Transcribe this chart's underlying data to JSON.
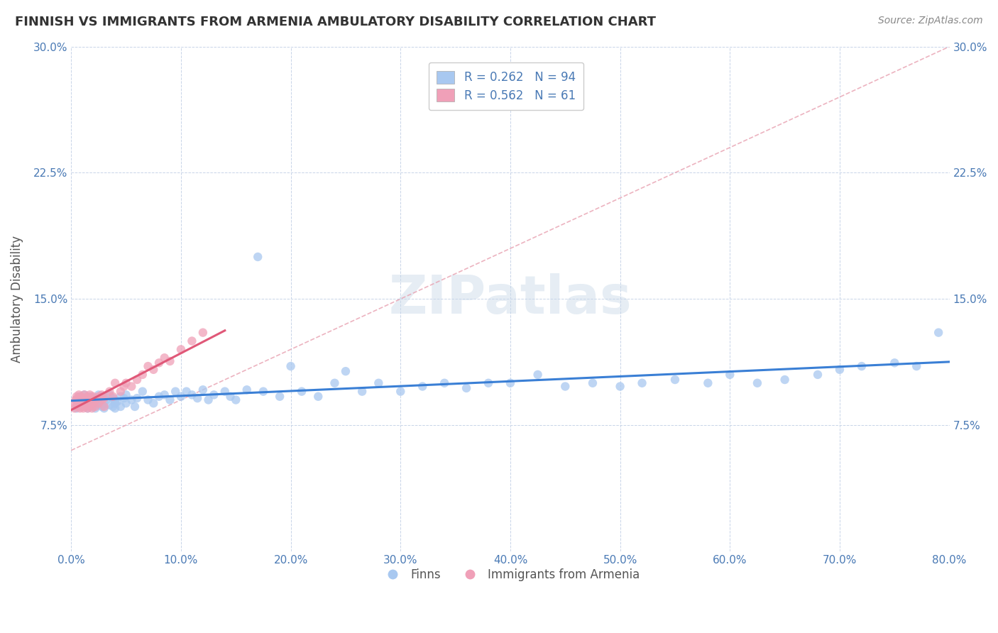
{
  "title": "FINNISH VS IMMIGRANTS FROM ARMENIA AMBULATORY DISABILITY CORRELATION CHART",
  "source": "Source: ZipAtlas.com",
  "ylabel": "Ambulatory Disability",
  "xmin": 0.0,
  "xmax": 0.8,
  "ymin": 0.0,
  "ymax": 0.3,
  "legend_entry1": "R = 0.262   N = 94",
  "legend_entry2": "R = 0.562   N = 61",
  "legend_label1": "Finns",
  "legend_label2": "Immigrants from Armenia",
  "dot_color_blue": "#a8c8f0",
  "dot_color_pink": "#f0a0b8",
  "line_color_blue": "#3a7fd5",
  "line_color_pink": "#e05878",
  "diag_color": "#e8a0b0",
  "background_color": "#ffffff",
  "grid_color": "#c8d4e8",
  "watermark": "ZIPatlas",
  "finns_x": [
    0.005,
    0.005,
    0.008,
    0.008,
    0.01,
    0.01,
    0.01,
    0.012,
    0.012,
    0.015,
    0.015,
    0.015,
    0.018,
    0.018,
    0.02,
    0.02,
    0.02,
    0.022,
    0.022,
    0.025,
    0.025,
    0.025,
    0.028,
    0.028,
    0.03,
    0.03,
    0.03,
    0.032,
    0.035,
    0.035,
    0.038,
    0.038,
    0.04,
    0.04,
    0.04,
    0.042,
    0.045,
    0.045,
    0.048,
    0.05,
    0.05,
    0.055,
    0.058,
    0.06,
    0.065,
    0.07,
    0.075,
    0.08,
    0.085,
    0.09,
    0.095,
    0.1,
    0.105,
    0.11,
    0.115,
    0.12,
    0.125,
    0.13,
    0.14,
    0.145,
    0.15,
    0.16,
    0.17,
    0.175,
    0.19,
    0.2,
    0.21,
    0.225,
    0.24,
    0.25,
    0.265,
    0.28,
    0.3,
    0.32,
    0.34,
    0.36,
    0.38,
    0.4,
    0.425,
    0.45,
    0.475,
    0.5,
    0.52,
    0.55,
    0.58,
    0.6,
    0.625,
    0.65,
    0.68,
    0.7,
    0.72,
    0.75,
    0.77,
    0.79
  ],
  "finns_y": [
    0.09,
    0.085,
    0.088,
    0.092,
    0.086,
    0.091,
    0.088,
    0.087,
    0.093,
    0.085,
    0.09,
    0.087,
    0.089,
    0.092,
    0.086,
    0.091,
    0.088,
    0.09,
    0.085,
    0.087,
    0.093,
    0.089,
    0.086,
    0.091,
    0.088,
    0.092,
    0.085,
    0.09,
    0.087,
    0.093,
    0.086,
    0.091,
    0.088,
    0.09,
    0.085,
    0.089,
    0.092,
    0.086,
    0.091,
    0.088,
    0.093,
    0.09,
    0.086,
    0.091,
    0.095,
    0.09,
    0.088,
    0.092,
    0.093,
    0.09,
    0.095,
    0.092,
    0.095,
    0.093,
    0.091,
    0.096,
    0.09,
    0.093,
    0.095,
    0.092,
    0.09,
    0.096,
    0.175,
    0.095,
    0.092,
    0.11,
    0.095,
    0.092,
    0.1,
    0.107,
    0.095,
    0.1,
    0.095,
    0.098,
    0.1,
    0.097,
    0.1,
    0.1,
    0.105,
    0.098,
    0.1,
    0.098,
    0.1,
    0.102,
    0.1,
    0.105,
    0.1,
    0.102,
    0.105,
    0.108,
    0.11,
    0.112,
    0.11,
    0.13
  ],
  "armenia_x": [
    0.002,
    0.003,
    0.004,
    0.005,
    0.005,
    0.006,
    0.006,
    0.007,
    0.007,
    0.008,
    0.008,
    0.009,
    0.009,
    0.01,
    0.01,
    0.01,
    0.011,
    0.011,
    0.012,
    0.012,
    0.013,
    0.013,
    0.014,
    0.014,
    0.015,
    0.015,
    0.016,
    0.016,
    0.017,
    0.017,
    0.018,
    0.018,
    0.019,
    0.019,
    0.02,
    0.02,
    0.022,
    0.022,
    0.025,
    0.025,
    0.028,
    0.028,
    0.03,
    0.03,
    0.035,
    0.038,
    0.04,
    0.045,
    0.048,
    0.05,
    0.055,
    0.06,
    0.065,
    0.07,
    0.075,
    0.08,
    0.085,
    0.09,
    0.1,
    0.11,
    0.12
  ],
  "armenia_y": [
    0.088,
    0.085,
    0.09,
    0.087,
    0.092,
    0.086,
    0.091,
    0.088,
    0.093,
    0.085,
    0.09,
    0.087,
    0.092,
    0.086,
    0.091,
    0.088,
    0.09,
    0.085,
    0.087,
    0.093,
    0.086,
    0.091,
    0.088,
    0.09,
    0.085,
    0.092,
    0.087,
    0.09,
    0.086,
    0.093,
    0.088,
    0.091,
    0.085,
    0.09,
    0.088,
    0.092,
    0.09,
    0.086,
    0.092,
    0.088,
    0.093,
    0.09,
    0.091,
    0.086,
    0.095,
    0.092,
    0.1,
    0.095,
    0.098,
    0.1,
    0.098,
    0.102,
    0.105,
    0.11,
    0.108,
    0.112,
    0.115,
    0.113,
    0.12,
    0.125,
    0.13
  ],
  "title_fontsize": 13,
  "tick_fontsize": 11,
  "ylabel_fontsize": 12
}
